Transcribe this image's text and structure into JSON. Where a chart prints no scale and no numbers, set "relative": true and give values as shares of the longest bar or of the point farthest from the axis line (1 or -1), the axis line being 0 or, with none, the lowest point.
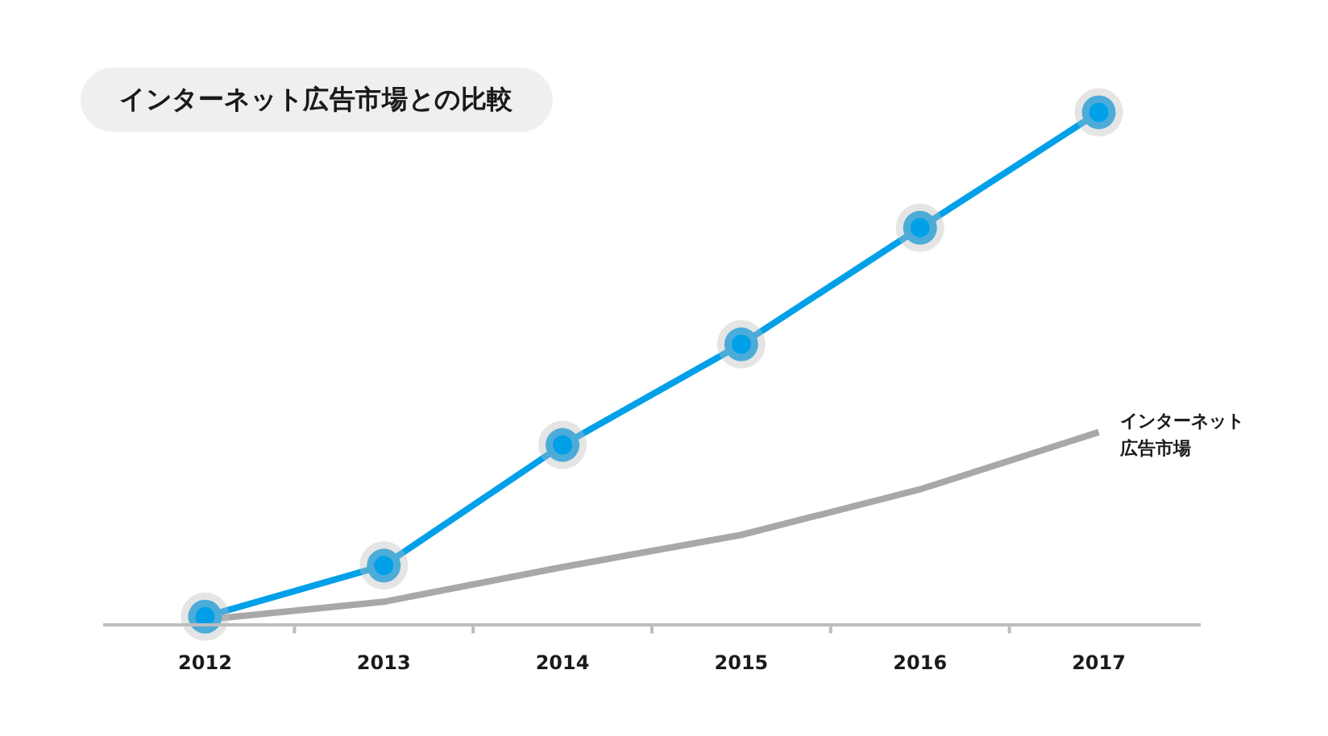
{
  "chart_data": {
    "type": "line",
    "title": "インターネット広告市場との比較",
    "categories": [
      "2012",
      "2013",
      "2014",
      "2015",
      "2016",
      "2017"
    ],
    "relative": true,
    "marker": "circle",
    "line_style": "solid",
    "series": [
      {
        "name": "インターネット広告市場",
        "color": "#a8a8a8",
        "marker": "none",
        "values": [
          0.007,
          0.042,
          0.11,
          0.173,
          0.262,
          0.374
        ]
      },
      {
        "color": "#00a0e9",
        "values": [
          0.013,
          0.113,
          0.349,
          0.546,
          0.774,
          1
        ]
      }
    ]
  }
}
